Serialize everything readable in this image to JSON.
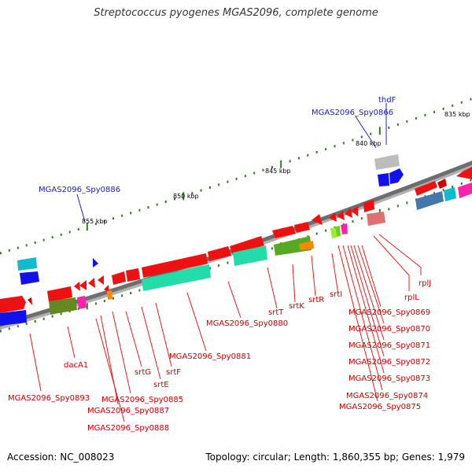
{
  "title": "Streptococcus pyogenes MGAS2096, complete genome",
  "accession_label": "Accession: NC_008023",
  "summary_label": "Topology: circular; Length: 1,860,355 bp; Genes: 1,979",
  "colors": {
    "ring": "#777777",
    "tick": "#2e7d1e",
    "gene_label_red": "#cc0000",
    "gene_label_blue": "#1a1acc",
    "leader_red": "#e02020",
    "leader_blue": "#2020cc"
  },
  "kbp_labels": [
    "835 kbp",
    "840 kbp",
    "845 kbp",
    "850 kbp",
    "855 kbp"
  ],
  "gene_labels_blue": [
    "thdF",
    "MGAS2096_Spy0866",
    "MGAS2096_Spy0886"
  ],
  "gene_labels_red": [
    "rplJ",
    "rplL",
    "MGAS2096_Spy0869",
    "MGAS2096_Spy0870",
    "MGAS2096_Spy0871",
    "MGAS2096_Spy0872",
    "MGAS2096_Spy0873",
    "MGAS2096_Spy0874",
    "MGAS2096_Spy0875",
    "srtI",
    "srtR",
    "srtK",
    "srtT",
    "MGAS2096_Spy0880",
    "MGAS2096_Spy0881",
    "srtF",
    "srtE",
    "srtG",
    "MGAS2096_Spy0885",
    "MGAS2096_Spy0887",
    "MGAS2096_Spy0888",
    "dacA1",
    "MGAS2096_Spy0893"
  ]
}
